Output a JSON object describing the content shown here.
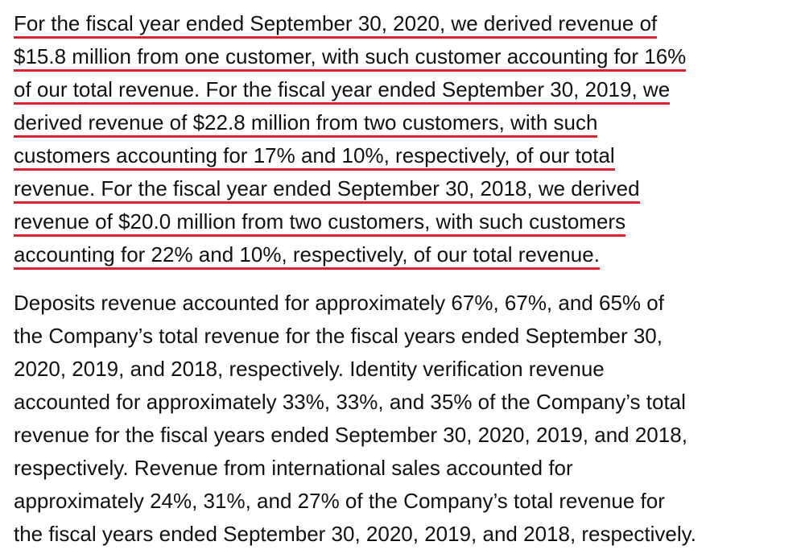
{
  "highlight_color": "#d9232e",
  "paragraph1": {
    "highlighted": true,
    "lines": [
      "For the fiscal year ended September 30, 2020, we derived revenue of",
      "$15.8 million from one customer, with such customer accounting for 16%",
      "of our total revenue. For the fiscal year ended September 30, 2019, we",
      "derived revenue of $22.8 million from two customers, with such",
      "customers accounting for 17% and 10%, respectively, of our total",
      "revenue. For the fiscal year ended September 30, 2018, we derived",
      "revenue of $20.0 million from two customers, with such customers",
      "accounting for 22% and 10%, respectively, of our total revenue."
    ]
  },
  "paragraph2": {
    "highlighted": false,
    "lines": [
      "Deposits revenue accounted for approximately 67%, 67%, and 65% of",
      "the Company’s total revenue for the fiscal years ended September 30,",
      "2020, 2019, and 2018, respectively. Identity verification revenue",
      "accounted for approximately 33%, 33%, and 35% of the Company’s total",
      "revenue for the fiscal years ended September 30, 2020, 2019, and 2018,",
      "respectively. Revenue from international sales accounted for",
      "approximately 24%, 31%, and 27% of the Company’s total revenue for",
      "the fiscal years ended September 30, 2020, 2019, and 2018, respectively."
    ]
  }
}
